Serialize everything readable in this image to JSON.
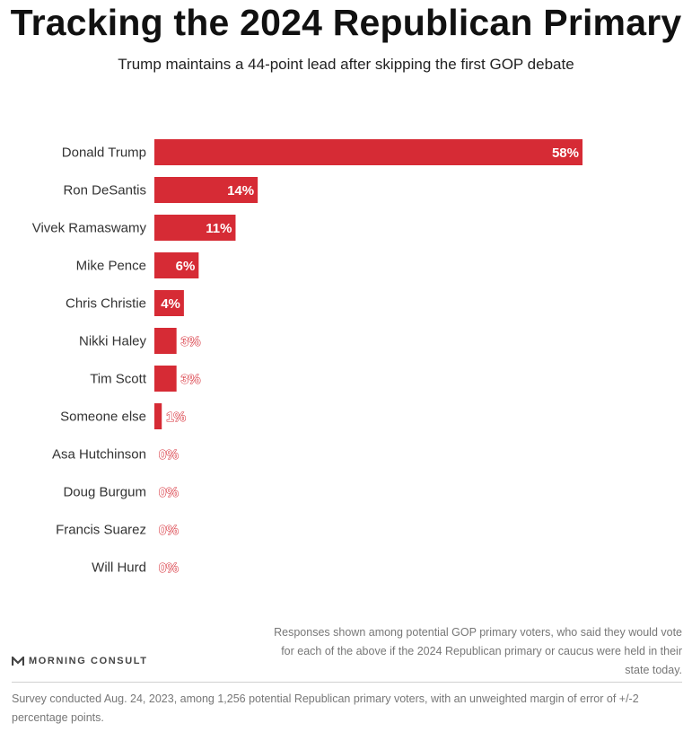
{
  "colors": {
    "bar": "#d62b35",
    "text": "#333333",
    "note": "#777777"
  },
  "brand": {
    "name": "MORNING CONSULT",
    "icon": "morning-consult-logo-icon"
  },
  "chart_data": {
    "type": "bar",
    "orientation": "horizontal",
    "title": "Tracking the 2024 Republican Primary",
    "subtitle": "Trump maintains a 44-point lead after skipping the first GOP debate",
    "categories": [
      "Donald Trump",
      "Ron DeSantis",
      "Vivek Ramaswamy",
      "Mike Pence",
      "Chris Christie",
      "Nikki Haley",
      "Tim Scott",
      "Someone else",
      "Asa Hutchinson",
      "Doug Burgum",
      "Francis Suarez",
      "Will Hurd"
    ],
    "values": [
      58,
      14,
      11,
      6,
      4,
      3,
      3,
      1,
      0,
      0,
      0,
      0
    ],
    "value_labels": [
      "58%",
      "14%",
      "11%",
      "6%",
      "4%",
      "3%",
      "3%",
      "1%",
      "0%",
      "0%",
      "0%",
      "0%"
    ],
    "xlim": [
      0,
      60
    ],
    "grid": false,
    "legend": "none"
  },
  "note": "Responses shown among potential GOP primary voters, who said they would vote for each of the above if the 2024 Republican primary or caucus were held in their state today.",
  "footer": "Survey conducted Aug. 24, 2023, among 1,256 potential Republican primary voters, with an unweighted margin of error of +/-2 percentage points."
}
